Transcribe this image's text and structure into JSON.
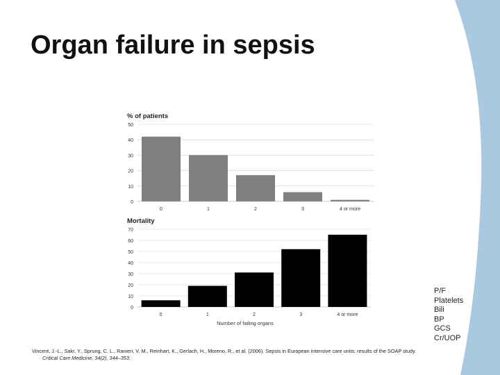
{
  "slide": {
    "title": "Organ failure in sepsis",
    "legend_items": [
      "P/F",
      "Platelets",
      "Bili",
      "BP",
      "GCS",
      "Cr/UOP"
    ],
    "citation": {
      "text": "Vincent, J.-L., Sakr, Y., Sprung, C. L., Ranieri, V. M., Reinhart, K., Gerlach, H., Moreno, R., et al. (2006). Sepsis in European intensive care units: results of the SOAP study.",
      "journal": "Critical Care Medicine, 34(2), 344–353."
    },
    "colors": {
      "accent_curve": "#a9c9e0",
      "bar_top": "#7f7f7f",
      "bar_bottom": "#000000",
      "grid": "#cccccc"
    }
  },
  "chart_data": [
    {
      "type": "bar",
      "title": "% of patients",
      "categories": [
        "0",
        "1",
        "2",
        "3",
        "4 or more"
      ],
      "values": [
        42,
        30,
        17,
        6,
        1
      ],
      "xlabel": "",
      "ylabel": "",
      "yticks": [
        0,
        10,
        20,
        30,
        40,
        50
      ],
      "ylim": [
        0,
        50
      ],
      "grid": true,
      "color": "#7f7f7f"
    },
    {
      "type": "bar",
      "title": "Mortality",
      "categories": [
        "0",
        "1",
        "2",
        "3",
        "4 or more"
      ],
      "values": [
        6,
        19,
        31,
        52,
        65
      ],
      "xlabel": "Number of failing organs",
      "ylabel": "",
      "yticks": [
        0,
        10,
        20,
        30,
        40,
        50,
        60,
        70
      ],
      "ylim": [
        0,
        70
      ],
      "grid": true,
      "color": "#000000"
    }
  ]
}
